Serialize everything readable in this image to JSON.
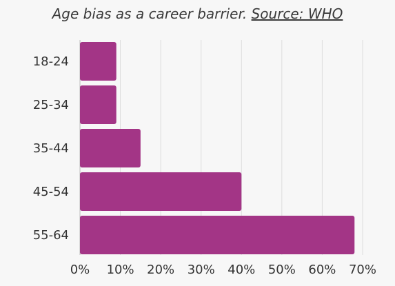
{
  "header": {
    "title_text": "Age bias as a career barrier.",
    "source_link": "Source: WHO"
  },
  "chart_data": {
    "type": "bar",
    "orientation": "horizontal",
    "title": "Age bias as a career barrier. Source: WHO",
    "categories": [
      "18-24",
      "25-34",
      "35-44",
      "45-54",
      "55-64"
    ],
    "values": [
      9,
      9,
      15,
      40,
      68
    ],
    "xlim": [
      0,
      70
    ],
    "x_ticks": [
      "0%",
      "10%",
      "20%",
      "30%",
      "40%",
      "50%",
      "60%",
      "70%"
    ],
    "grid": true,
    "colors": {
      "bar": "#a33586",
      "grid": "#dddddd",
      "background": "#f7f7f7"
    }
  }
}
